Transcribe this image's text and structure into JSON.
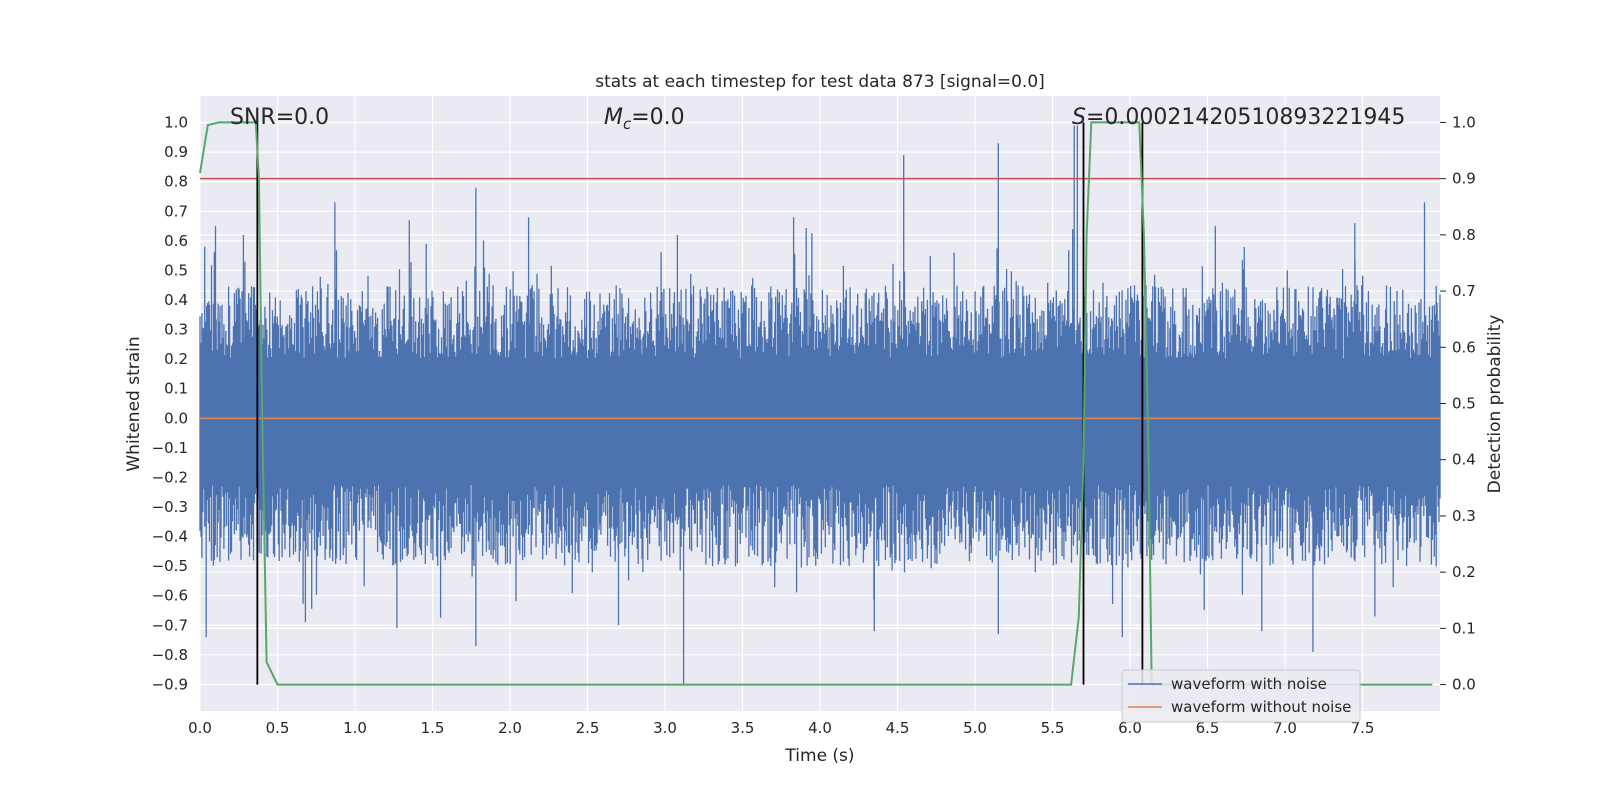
{
  "chart_data": {
    "type": "line",
    "title": "stats at each timestep for test data 873 [signal=0.0]",
    "xlabel": "Time (s)",
    "ylabel": "Whitened strain",
    "ylabel_right": "Detection probability",
    "xlim": [
      0.0,
      8.0
    ],
    "ylim": [
      -0.99,
      1.09
    ],
    "ylim_right": [
      -0.047,
      1.047
    ],
    "xticks": [
      "0.0",
      "0.5",
      "1.0",
      "1.5",
      "2.0",
      "2.5",
      "3.0",
      "3.5",
      "4.0",
      "4.5",
      "5.0",
      "5.5",
      "6.0",
      "6.5",
      "7.0",
      "7.5"
    ],
    "yticks": [
      "−0.9",
      "−0.8",
      "−0.7",
      "−0.6",
      "−0.5",
      "−0.4",
      "−0.3",
      "−0.2",
      "−0.1",
      "0.0",
      "0.1",
      "0.2",
      "0.3",
      "0.4",
      "0.5",
      "0.6",
      "0.7",
      "0.8",
      "0.9",
      "1.0"
    ],
    "yticks_right": [
      "0.0",
      "0.1",
      "0.2",
      "0.3",
      "0.4",
      "0.5",
      "0.6",
      "0.7",
      "0.8",
      "0.9",
      "1.0"
    ],
    "grid": true,
    "legend_position": "bottom-right",
    "legend": [
      "waveform with noise",
      "waveform without noise"
    ],
    "annotations": {
      "snr": "SNR=0.0",
      "mc_symbol": "M",
      "mc_sub": "c",
      "mc_value": "=0.0",
      "s_symbol": "S",
      "s_value": "=0.00021420510893221945"
    },
    "colors": {
      "noise": "#4c72b0",
      "clean": "#dd8452",
      "probability": "#55a868",
      "threshold": "#c44e52",
      "marker": "#000000",
      "background": "#eaeaf2",
      "grid": "#ffffff"
    },
    "series": [
      {
        "name": "waveform with noise",
        "axis": "left",
        "envelope_upper_typical": 0.45,
        "envelope_lower_typical": -0.5,
        "peaks": [
          [
            0.03,
            0.58
          ],
          [
            0.1,
            0.65
          ],
          [
            0.28,
            0.62
          ],
          [
            0.87,
            0.73
          ],
          [
            1.35,
            0.67
          ],
          [
            1.78,
            0.78
          ],
          [
            2.12,
            0.68
          ],
          [
            3.08,
            0.62
          ],
          [
            3.83,
            0.68
          ],
          [
            4.54,
            0.89
          ],
          [
            5.15,
            0.93
          ],
          [
            5.63,
            0.64
          ],
          [
            5.64,
            0.99
          ],
          [
            5.66,
            0.99
          ],
          [
            6.55,
            0.65
          ],
          [
            7.45,
            0.66
          ],
          [
            7.9,
            0.73
          ]
        ],
        "troughs": [
          [
            0.04,
            -0.74
          ],
          [
            0.68,
            -0.69
          ],
          [
            1.27,
            -0.71
          ],
          [
            1.78,
            -0.77
          ],
          [
            2.7,
            -0.7
          ],
          [
            3.12,
            -0.9
          ],
          [
            4.35,
            -0.72
          ],
          [
            5.15,
            -0.73
          ],
          [
            5.95,
            -0.74
          ],
          [
            6.85,
            -0.72
          ],
          [
            7.18,
            -0.79
          ],
          [
            7.58,
            -0.67
          ]
        ]
      },
      {
        "name": "waveform without noise",
        "axis": "left",
        "x": [
          0.0,
          8.0
        ],
        "y": [
          0.0,
          0.0
        ]
      },
      {
        "name": "detection probability",
        "axis": "right",
        "x": [
          0.0,
          0.05,
          0.12,
          0.36,
          0.38,
          0.4,
          0.43,
          0.5,
          5.62,
          5.67,
          5.7,
          5.72,
          5.75,
          6.06,
          6.09,
          6.12,
          6.14,
          7.95
        ],
        "y": [
          0.91,
          0.995,
          1.0,
          1.0,
          0.9,
          0.5,
          0.04,
          0.0,
          0.0,
          0.12,
          0.4,
          0.8,
          1.0,
          1.0,
          0.8,
          0.4,
          0.0,
          0.0
        ]
      }
    ],
    "threshold_right": 0.9,
    "markers_x": [
      0.37,
      5.7,
      6.08
    ]
  }
}
